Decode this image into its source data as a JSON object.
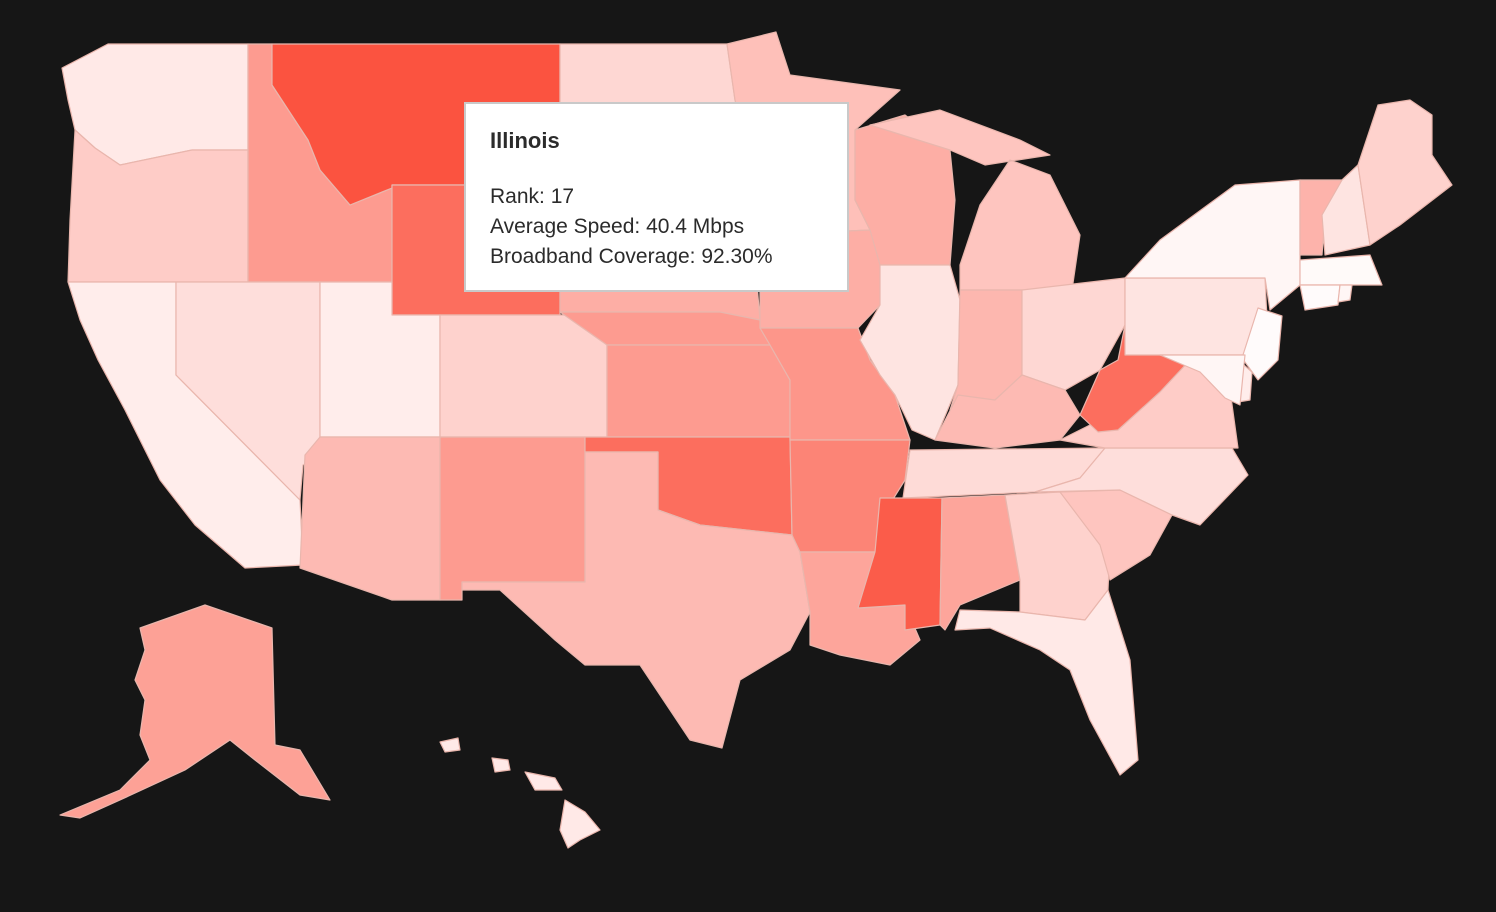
{
  "colors": {
    "background": "#161616",
    "low": "#ffffff",
    "high": "#fb4a36",
    "border": "#e9b6ad"
  },
  "tooltip": {
    "state": "Illinois",
    "rank_line": "Rank: 17",
    "speed_line": "Average Speed: 40.4 Mbps",
    "coverage_line": "Broadband Coverage: 92.30%"
  },
  "states": [
    {
      "name": "Washington",
      "shade": 0.12
    },
    {
      "name": "Oregon",
      "shade": 0.28
    },
    {
      "name": "California",
      "shade": 0.1
    },
    {
      "name": "Idaho",
      "shade": 0.55
    },
    {
      "name": "Nevada",
      "shade": 0.18
    },
    {
      "name": "Montana",
      "shade": 0.95
    },
    {
      "name": "Wyoming",
      "shade": 0.8
    },
    {
      "name": "Utah",
      "shade": 0.1
    },
    {
      "name": "Colorado",
      "shade": 0.25
    },
    {
      "name": "Arizona",
      "shade": 0.38
    },
    {
      "name": "New Mexico",
      "shade": 0.55
    },
    {
      "name": "North Dakota",
      "shade": 0.22
    },
    {
      "name": "South Dakota",
      "shade": 0.45
    },
    {
      "name": "Nebraska",
      "shade": 0.55
    },
    {
      "name": "Kansas",
      "shade": 0.55
    },
    {
      "name": "Oklahoma",
      "shade": 0.8
    },
    {
      "name": "Texas",
      "shade": 0.38
    },
    {
      "name": "Minnesota",
      "shade": 0.35
    },
    {
      "name": "Iowa",
      "shade": 0.45
    },
    {
      "name": "Missouri",
      "shade": 0.58
    },
    {
      "name": "Arkansas",
      "shade": 0.68
    },
    {
      "name": "Louisiana",
      "shade": 0.5
    },
    {
      "name": "Wisconsin",
      "shade": 0.45
    },
    {
      "name": "Illinois",
      "shade": 0.15
    },
    {
      "name": "Michigan",
      "shade": 0.32
    },
    {
      "name": "Indiana",
      "shade": 0.4
    },
    {
      "name": "Ohio",
      "shade": 0.22
    },
    {
      "name": "Kentucky",
      "shade": 0.38
    },
    {
      "name": "Tennessee",
      "shade": 0.2
    },
    {
      "name": "Mississippi",
      "shade": 0.9
    },
    {
      "name": "Alabama",
      "shade": 0.5
    },
    {
      "name": "Georgia",
      "shade": 0.25
    },
    {
      "name": "Florida",
      "shade": 0.12
    },
    {
      "name": "South Carolina",
      "shade": 0.32
    },
    {
      "name": "North Carolina",
      "shade": 0.18
    },
    {
      "name": "Virginia",
      "shade": 0.28
    },
    {
      "name": "West Virginia",
      "shade": 0.8
    },
    {
      "name": "Pennsylvania",
      "shade": 0.15
    },
    {
      "name": "New York",
      "shade": 0.05
    },
    {
      "name": "Vermont",
      "shade": 0.42
    },
    {
      "name": "New Hampshire",
      "shade": 0.15
    },
    {
      "name": "Maine",
      "shade": 0.25
    },
    {
      "name": "Massachusetts",
      "shade": 0.03
    },
    {
      "name": "Connecticut",
      "shade": 0.02
    },
    {
      "name": "Rhode Island",
      "shade": 0.05
    },
    {
      "name": "New Jersey",
      "shade": 0.02
    },
    {
      "name": "Delaware",
      "shade": 0.1
    },
    {
      "name": "Maryland",
      "shade": 0.05
    },
    {
      "name": "Alaska",
      "shade": 0.52
    },
    {
      "name": "Hawaii",
      "shade": 0.12
    }
  ]
}
